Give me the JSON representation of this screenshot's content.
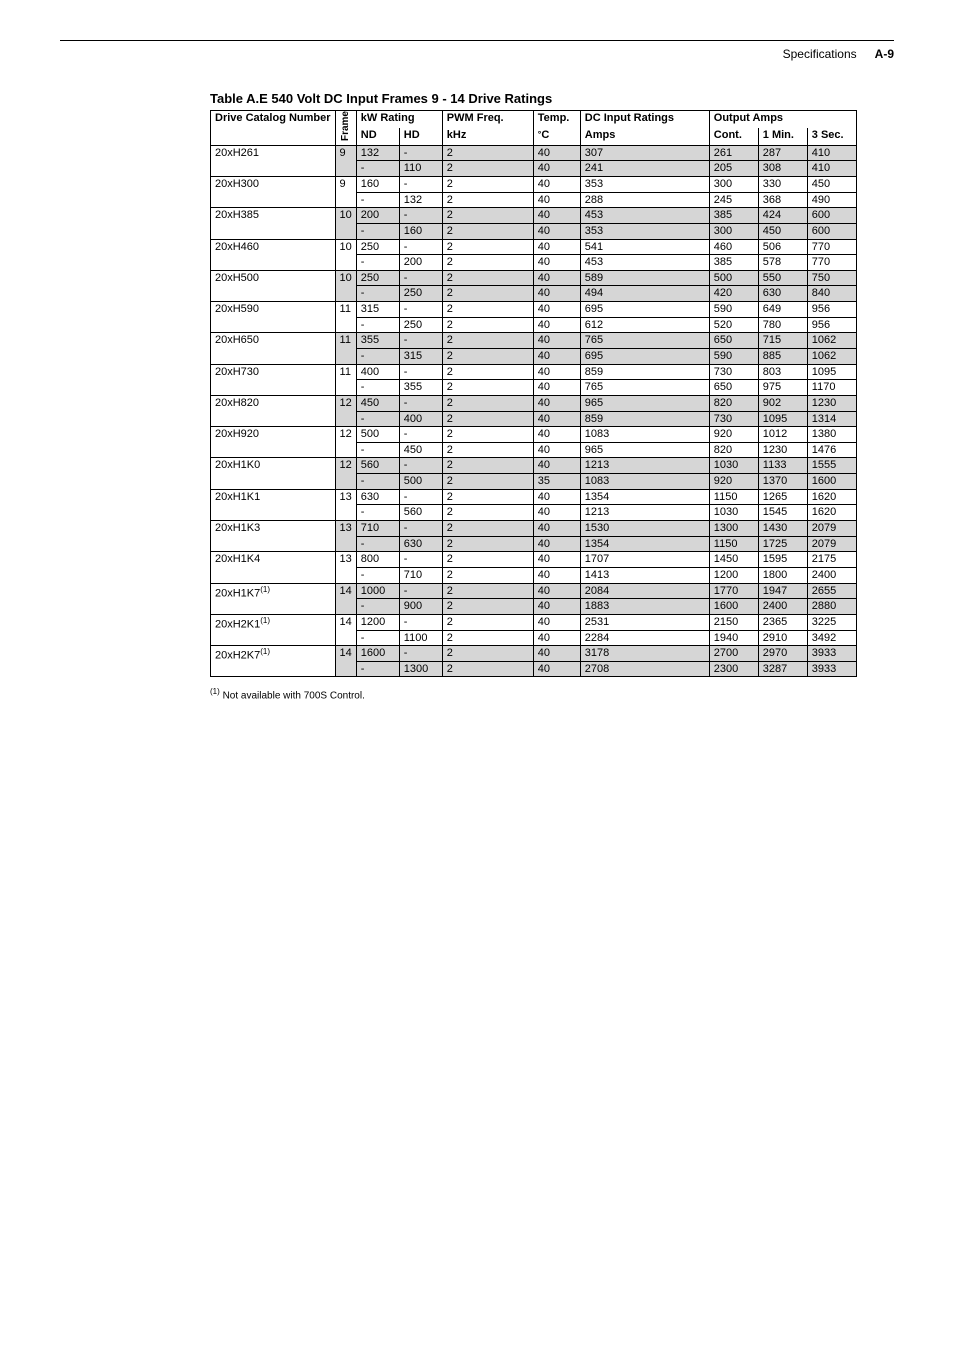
{
  "header": {
    "section": "Specifications",
    "page_label": "A-9"
  },
  "table": {
    "title": "Table A.E   540 Volt DC Input Frames 9 - 14 Drive Ratings",
    "group_headers": {
      "catalog": "Drive Catalog Number",
      "frame": "Frame",
      "kw_rating": "kW Rating",
      "pwm_freq": "PWM Freq.",
      "temp": "Temp.",
      "dc_input": "DC Input Ratings",
      "output_amps": "Output Amps"
    },
    "sub_headers": {
      "nd": "ND",
      "hd": "HD",
      "khz": "kHz",
      "deg_c_prefix": "°",
      "deg_c": "C",
      "amps": "Amps",
      "cont": "Cont.",
      "min1": "1 Min.",
      "sec3": "3 Sec."
    },
    "column_widths": {
      "catalog": 62,
      "frame": 14,
      "nd": 34,
      "hd": 34,
      "khz": 82,
      "temp": 38,
      "amps": 120,
      "cont": 40,
      "min1": 40,
      "sec3": 40
    },
    "shaded_bg": "#d6d6d6",
    "rows": [
      {
        "catalog": "20xH261",
        "sup": "",
        "frame": "9",
        "shade": true,
        "r": [
          [
            "132",
            "-",
            "2",
            "40",
            "307",
            "261",
            "287",
            "410"
          ],
          [
            "-",
            "110",
            "2",
            "40",
            "241",
            "205",
            "308",
            "410"
          ]
        ]
      },
      {
        "catalog": "20xH300",
        "sup": "",
        "frame": "9",
        "shade": false,
        "r": [
          [
            "160",
            "-",
            "2",
            "40",
            "353",
            "300",
            "330",
            "450"
          ],
          [
            "-",
            "132",
            "2",
            "40",
            "288",
            "245",
            "368",
            "490"
          ]
        ]
      },
      {
        "catalog": "20xH385",
        "sup": "",
        "frame": "10",
        "shade": true,
        "r": [
          [
            "200",
            "-",
            "2",
            "40",
            "453",
            "385",
            "424",
            "600"
          ],
          [
            "-",
            "160",
            "2",
            "40",
            "353",
            "300",
            "450",
            "600"
          ]
        ]
      },
      {
        "catalog": "20xH460",
        "sup": "",
        "frame": "10",
        "shade": false,
        "r": [
          [
            "250",
            "-",
            "2",
            "40",
            "541",
            "460",
            "506",
            "770"
          ],
          [
            "-",
            "200",
            "2",
            "40",
            "453",
            "385",
            "578",
            "770"
          ]
        ]
      },
      {
        "catalog": "20xH500",
        "sup": "",
        "frame": "10",
        "shade": true,
        "r": [
          [
            "250",
            "-",
            "2",
            "40",
            "589",
            "500",
            "550",
            "750"
          ],
          [
            "-",
            "250",
            "2",
            "40",
            "494",
            "420",
            "630",
            "840"
          ]
        ]
      },
      {
        "catalog": "20xH590",
        "sup": "",
        "frame": "11",
        "shade": false,
        "r": [
          [
            "315",
            "-",
            "2",
            "40",
            "695",
            "590",
            "649",
            "956"
          ],
          [
            "-",
            "250",
            "2",
            "40",
            "612",
            "520",
            "780",
            "956"
          ]
        ]
      },
      {
        "catalog": "20xH650",
        "sup": "",
        "frame": "11",
        "shade": true,
        "r": [
          [
            "355",
            "-",
            "2",
            "40",
            "765",
            "650",
            "715",
            "1062"
          ],
          [
            "-",
            "315",
            "2",
            "40",
            "695",
            "590",
            "885",
            "1062"
          ]
        ]
      },
      {
        "catalog": "20xH730",
        "sup": "",
        "frame": "11",
        "shade": false,
        "r": [
          [
            "400",
            "-",
            "2",
            "40",
            "859",
            "730",
            "803",
            "1095"
          ],
          [
            "-",
            "355",
            "2",
            "40",
            "765",
            "650",
            "975",
            "1170"
          ]
        ]
      },
      {
        "catalog": "20xH820",
        "sup": "",
        "frame": "12",
        "shade": true,
        "r": [
          [
            "450",
            "-",
            "2",
            "40",
            "965",
            "820",
            "902",
            "1230"
          ],
          [
            "-",
            "400",
            "2",
            "40",
            "859",
            "730",
            "1095",
            "1314"
          ]
        ]
      },
      {
        "catalog": "20xH920",
        "sup": "",
        "frame": "12",
        "shade": false,
        "r": [
          [
            "500",
            "-",
            "2",
            "40",
            "1083",
            "920",
            "1012",
            "1380"
          ],
          [
            "-",
            "450",
            "2",
            "40",
            "965",
            "820",
            "1230",
            "1476"
          ]
        ]
      },
      {
        "catalog": "20xH1K0",
        "sup": "",
        "frame": "12",
        "shade": true,
        "r": [
          [
            "560",
            "-",
            "2",
            "40",
            "1213",
            "1030",
            "1133",
            "1555"
          ],
          [
            "-",
            "500",
            "2",
            "35",
            "1083",
            "920",
            "1370",
            "1600"
          ]
        ]
      },
      {
        "catalog": "20xH1K1",
        "sup": "",
        "frame": "13",
        "shade": false,
        "r": [
          [
            "630",
            "-",
            "2",
            "40",
            "1354",
            "1150",
            "1265",
            "1620"
          ],
          [
            "-",
            "560",
            "2",
            "40",
            "1213",
            "1030",
            "1545",
            "1620"
          ]
        ]
      },
      {
        "catalog": "20xH1K3",
        "sup": "",
        "frame": "13",
        "shade": true,
        "r": [
          [
            "710",
            "-",
            "2",
            "40",
            "1530",
            "1300",
            "1430",
            "2079"
          ],
          [
            "-",
            "630",
            "2",
            "40",
            "1354",
            "1150",
            "1725",
            "2079"
          ]
        ]
      },
      {
        "catalog": "20xH1K4",
        "sup": "",
        "frame": "13",
        "shade": false,
        "r": [
          [
            "800",
            "-",
            "2",
            "40",
            "1707",
            "1450",
            "1595",
            "2175"
          ],
          [
            "-",
            "710",
            "2",
            "40",
            "1413",
            "1200",
            "1800",
            "2400"
          ]
        ]
      },
      {
        "catalog": "20xH1K7",
        "sup": "(1)",
        "frame": "14",
        "shade": true,
        "r": [
          [
            "1000",
            "-",
            "2",
            "40",
            "2084",
            "1770",
            "1947",
            "2655"
          ],
          [
            "-",
            "900",
            "2",
            "40",
            "1883",
            "1600",
            "2400",
            "2880"
          ]
        ]
      },
      {
        "catalog": "20xH2K1",
        "sup": "(1)",
        "frame": "14",
        "shade": false,
        "r": [
          [
            "1200",
            "-",
            "2",
            "40",
            "2531",
            "2150",
            "2365",
            "3225"
          ],
          [
            "-",
            "1100",
            "2",
            "40",
            "2284",
            "1940",
            "2910",
            "3492"
          ]
        ]
      },
      {
        "catalog": "20xH2K7",
        "sup": "(1)",
        "frame": "14",
        "shade": true,
        "r": [
          [
            "1600",
            "-",
            "2",
            "40",
            "3178",
            "2700",
            "2970",
            "3933"
          ],
          [
            "-",
            "1300",
            "2",
            "40",
            "2708",
            "2300",
            "3287",
            "3933"
          ]
        ]
      }
    ]
  },
  "footnote": {
    "num": "(1)",
    "text": "Not available with 700S Control."
  }
}
